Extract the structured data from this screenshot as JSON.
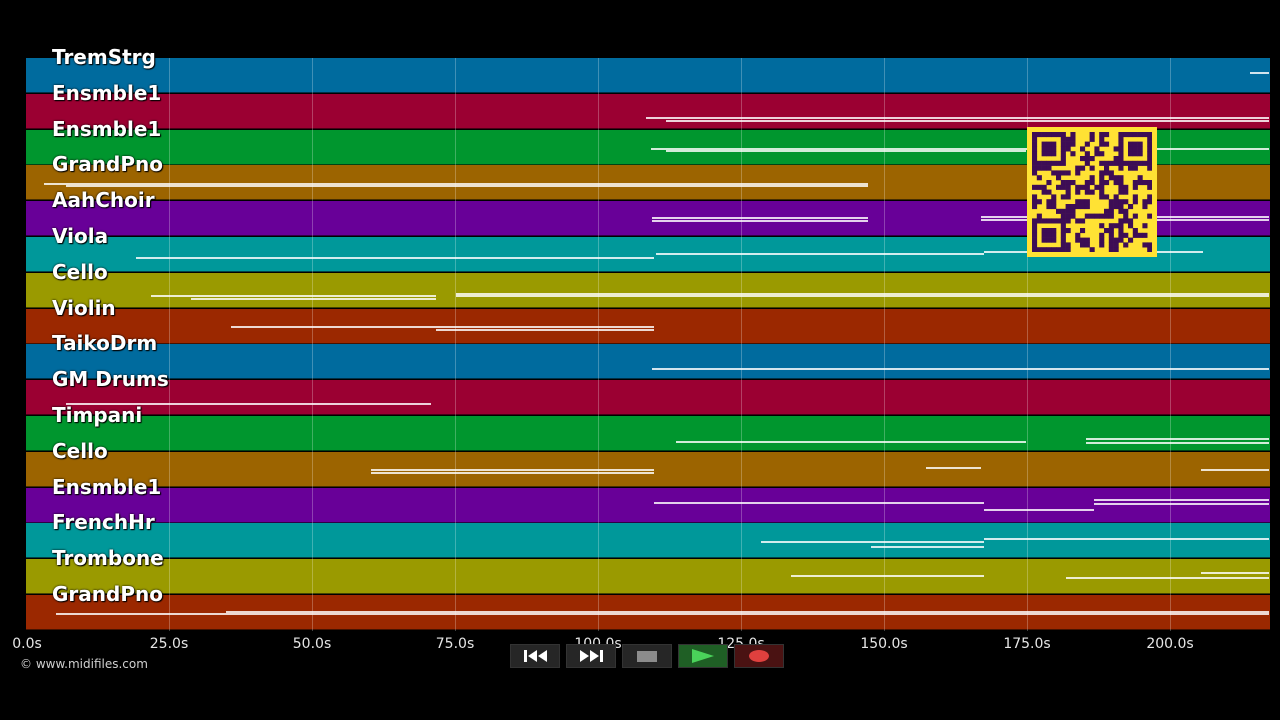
{
  "tracks": [
    {
      "name": "TremStrg",
      "color": "#006b9e",
      "notes": [
        [
          1224,
          1243,
          14
        ]
      ]
    },
    {
      "name": "Ensmble1",
      "color": "#9b0032",
      "notes": [
        [
          620,
          1243,
          23
        ],
        [
          640,
          1243,
          26
        ]
      ]
    },
    {
      "name": "Ensmble1",
      "color": "#00962e",
      "notes": [
        [
          625,
          1243,
          18
        ],
        [
          640,
          1000,
          20
        ]
      ]
    },
    {
      "name": "GrandPno",
      "color": "#9c6400",
      "notes": [
        [
          18,
          842,
          18
        ],
        [
          40,
          842,
          20
        ]
      ]
    },
    {
      "name": "AahChoir",
      "color": "#680098",
      "notes": [
        [
          626,
          842,
          16
        ],
        [
          626,
          842,
          19
        ],
        [
          955,
          1243,
          15
        ],
        [
          955,
          1243,
          18
        ]
      ]
    },
    {
      "name": "Viola",
      "color": "#00989a",
      "notes": [
        [
          110,
          628,
          20
        ],
        [
          630,
          958,
          16
        ],
        [
          958,
          1177,
          14
        ]
      ]
    },
    {
      "name": "Cello",
      "color": "#9a9a00",
      "notes": [
        [
          125,
          410,
          22
        ],
        [
          165,
          410,
          25
        ],
        [
          430,
          1243,
          22
        ],
        [
          430,
          1243,
          20
        ]
      ]
    },
    {
      "name": "Violin",
      "color": "#9b2800",
      "notes": [
        [
          205,
          628,
          17
        ],
        [
          410,
          628,
          20
        ]
      ]
    },
    {
      "name": "TaikoDrm",
      "color": "#006b9e",
      "notes": [
        [
          626,
          1243,
          24
        ]
      ]
    },
    {
      "name": "GM Drums",
      "color": "#9b0032",
      "notes": [
        [
          40,
          405,
          23
        ]
      ]
    },
    {
      "name": "Timpani",
      "color": "#00962e",
      "notes": [
        [
          650,
          1000,
          25
        ],
        [
          1060,
          1243,
          22
        ],
        [
          1060,
          1243,
          26
        ]
      ]
    },
    {
      "name": "Cello",
      "color": "#9c6400",
      "notes": [
        [
          345,
          628,
          17
        ],
        [
          345,
          628,
          20
        ],
        [
          900,
          955,
          15
        ],
        [
          1175,
          1243,
          17
        ]
      ]
    },
    {
      "name": "Ensmble1",
      "color": "#680098",
      "notes": [
        [
          628,
          958,
          14
        ],
        [
          958,
          1068,
          21
        ],
        [
          1068,
          1243,
          11
        ],
        [
          1068,
          1243,
          15
        ]
      ]
    },
    {
      "name": "FrenchHr",
      "color": "#00989a",
      "notes": [
        [
          735,
          958,
          18
        ],
        [
          845,
          958,
          23
        ],
        [
          958,
          1243,
          15
        ]
      ]
    },
    {
      "name": "Trombone",
      "color": "#9a9a00",
      "notes": [
        [
          765,
          958,
          16
        ],
        [
          1040,
          1243,
          18
        ],
        [
          1175,
          1243,
          13
        ]
      ]
    },
    {
      "name": "GrandPno",
      "color": "#9b2800",
      "notes": [
        [
          30,
          1243,
          18
        ],
        [
          200,
          1243,
          16
        ]
      ]
    }
  ],
  "time_axis": [
    "0.0s",
    "25.0s",
    "50.0s",
    "75.0s",
    "100.0s",
    "125.0s",
    "150.0s",
    "175.0s",
    "200.0s"
  ],
  "copyright": "© www.midifiles.com",
  "transport": {
    "rewind": "rewind-icon",
    "fast_forward": "fast-forward-icon",
    "stop": "stop-icon",
    "play": "play-icon",
    "record": "record-icon"
  },
  "qr_color": "#ffe234"
}
